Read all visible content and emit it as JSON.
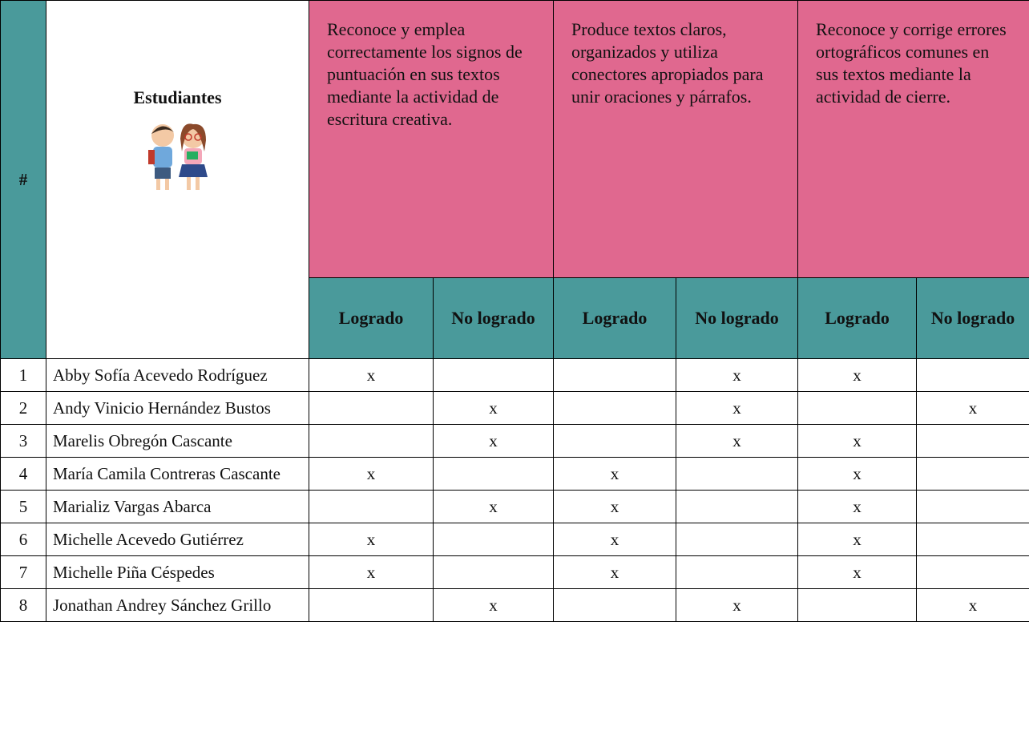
{
  "table": {
    "header": {
      "number": "#",
      "students": "Estudiantes",
      "criteria": [
        "Reconoce y emplea correctamente los signos de puntuación en sus textos mediante la actividad de escritura creativa.",
        "Produce textos claros, organizados y utiliza conectores apropiados para unir oraciones y párrafos.",
        "Reconoce y corrige errores ortográficos comunes en sus textos mediante la actividad de cierre."
      ],
      "sub": [
        "Logrado",
        "No logrado",
        "Logrado",
        "No logrado",
        "Logrado",
        "No logrado"
      ]
    },
    "rows": [
      {
        "number": 1,
        "name": "Abby Sofía Acevedo Rodríguez",
        "marks": [
          "x",
          null,
          null,
          "x",
          "x",
          null
        ]
      },
      {
        "number": 2,
        "name": "Andy Vinicio Hernández Bustos",
        "marks": [
          null,
          "x",
          null,
          "x",
          null,
          "x"
        ]
      },
      {
        "number": 3,
        "name": "Marelis Obregón Cascante",
        "marks": [
          null,
          "x",
          null,
          "x",
          "x",
          null
        ]
      },
      {
        "number": 4,
        "name": "María Camila Contreras Cascante",
        "marks": [
          "x",
          null,
          "x",
          null,
          "x",
          null
        ]
      },
      {
        "number": 5,
        "name": "Marializ Vargas Abarca",
        "marks": [
          null,
          "x",
          "x",
          null,
          "x",
          null
        ]
      },
      {
        "number": 6,
        "name": "Michelle Acevedo Gutiérrez",
        "marks": [
          "x",
          null,
          "x",
          null,
          "x",
          null
        ]
      },
      {
        "number": 7,
        "name": "Michelle Piña Céspedes",
        "marks": [
          "x",
          null,
          "x",
          null,
          "x",
          null
        ]
      },
      {
        "number": 8,
        "name": "Jonathan Andrey Sánchez Grillo",
        "marks": [
          null,
          "x",
          null,
          "x",
          null,
          "x"
        ]
      }
    ]
  }
}
